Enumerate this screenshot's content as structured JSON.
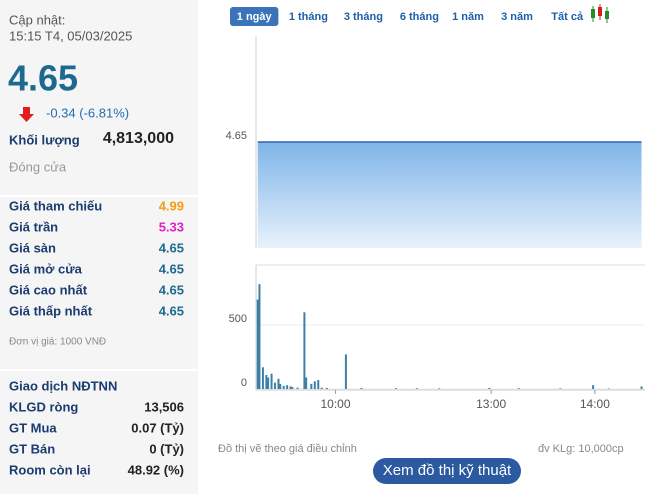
{
  "header": {
    "updated_label": "Cập nhật:",
    "updated_time": "15:15 T4, 05/03/2025"
  },
  "price": {
    "value": "4.65",
    "change": "-0.34 (-6.81%)"
  },
  "volume": {
    "label": "Khối lượng",
    "value": "4,813,000"
  },
  "status": "Đóng cửa",
  "price_rows": [
    {
      "label": "Giá tham chiếu",
      "value": "4.99",
      "color": "#f39c12"
    },
    {
      "label": "Giá trần",
      "value": "5.33",
      "color": "#e01fc8"
    },
    {
      "label": "Giá sàn",
      "value": "4.65",
      "color": "#1d6990"
    },
    {
      "label": "Giá mở cửa",
      "value": "4.65",
      "color": "#1d6990"
    },
    {
      "label": "Giá cao nhất",
      "value": "4.65",
      "color": "#1d6990"
    },
    {
      "label": "Giá thấp nhất",
      "value": "4.65",
      "color": "#1d6990"
    }
  ],
  "unit_note": "Đơn vị giá: 1000 VNĐ",
  "foreign": {
    "title": "Giao dịch NĐTNN",
    "rows": [
      {
        "label": "KLGD ròng",
        "value": "13,506"
      },
      {
        "label": "GT Mua",
        "value": "0.07 (Tỷ)"
      },
      {
        "label": "GT Bán",
        "value": "0 (Tỷ)"
      },
      {
        "label": "Room còn lại",
        "value": "48.92 (%)"
      }
    ]
  },
  "tabs": [
    "1 ngày",
    "1 tháng",
    "3 tháng",
    "6 tháng",
    "1 năm",
    "3 năm",
    "Tất cả"
  ],
  "active_tab": 0,
  "chart_data": [
    {
      "type": "area",
      "x": [
        0,
        222
      ],
      "values": [
        4.65,
        4.65
      ],
      "color": "#2f65ad",
      "xlim": [
        -1,
        224
      ],
      "ylim": [
        4.55,
        4.75
      ],
      "yticks": [
        4.65
      ]
    },
    {
      "type": "bar",
      "x": [
        0,
        1,
        3,
        5,
        6,
        8,
        10,
        12,
        13,
        15,
        17,
        19,
        20,
        23,
        27,
        28,
        31,
        33,
        35,
        37,
        40,
        51,
        60,
        80,
        92,
        105,
        134,
        151,
        175,
        194,
        203,
        222
      ],
      "values": [
        700,
        820,
        170,
        110,
        90,
        120,
        50,
        80,
        40,
        25,
        30,
        20,
        15,
        10,
        600,
        90,
        40,
        60,
        70,
        10,
        8,
        270,
        8,
        6,
        6,
        5,
        8,
        6,
        5,
        30,
        4,
        20
      ],
      "color": "#3d7fa6",
      "xlim": [
        -1,
        224
      ],
      "ylim": [
        0,
        970
      ],
      "yticks": [
        0,
        500
      ],
      "xticks": [
        {
          "value": 45,
          "label": "10:00"
        },
        {
          "value": 135,
          "label": "13:00"
        },
        {
          "value": 195,
          "label": "14:00"
        }
      ]
    }
  ],
  "footer": {
    "note": "Đồ thị vẽ theo giá điều chỉnh",
    "unit": "đv KLg: 10,000cp",
    "button": "Xem đồ thị kỹ thuật"
  }
}
